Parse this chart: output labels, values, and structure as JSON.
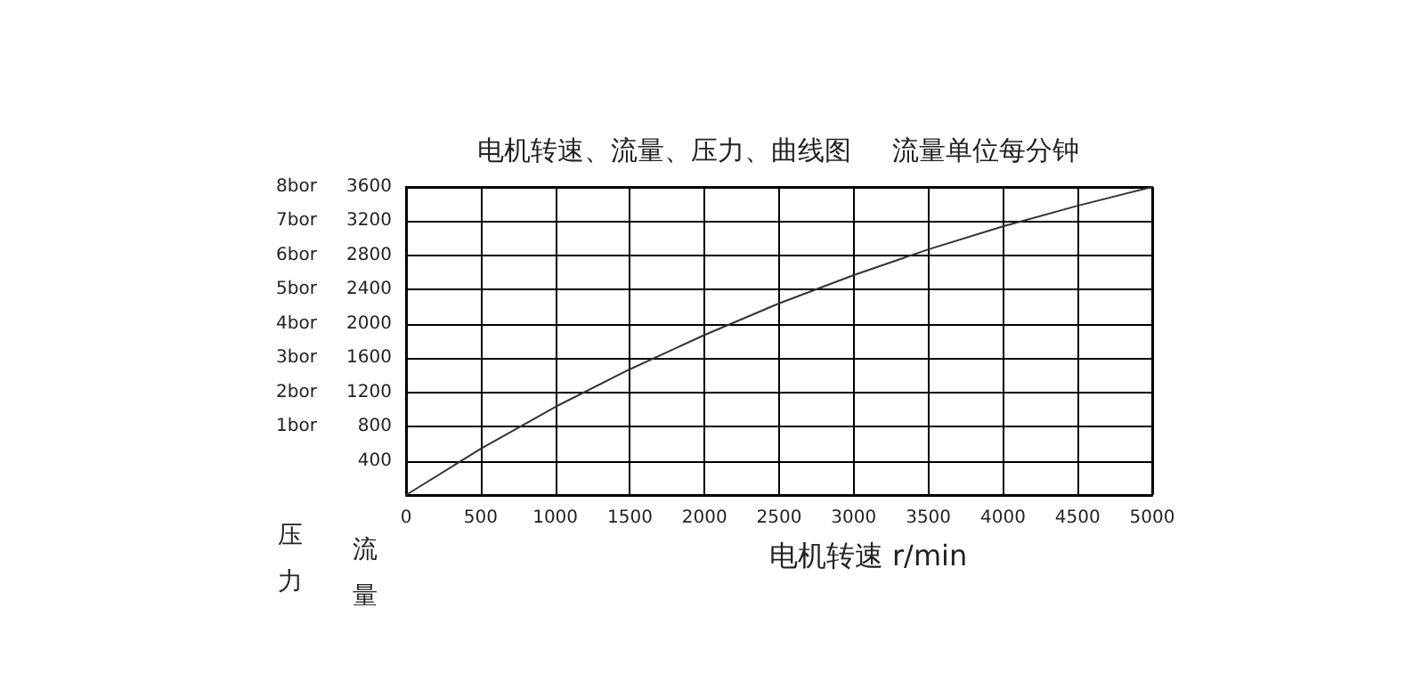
{
  "chart_data": {
    "type": "line",
    "title": "电机转速、流量、压力、曲线图",
    "subtitle": "流量单位每分钟",
    "xlabel": "电机转速 r/min",
    "ylabel": "流量",
    "y2label": "压力",
    "x": [
      0,
      500,
      1000,
      1500,
      2000,
      2500,
      3000,
      3500,
      4000,
      4500,
      5000
    ],
    "series": [
      {
        "color": "#333333",
        "values": [
          0,
          540,
          1030,
          1470,
          1870,
          2240,
          2570,
          2870,
          3140,
          3380,
          3600
        ]
      }
    ],
    "xlim": [
      0,
      5000
    ],
    "xticks": [
      0,
      500,
      1000,
      1500,
      2000,
      2500,
      3000,
      3500,
      4000,
      4500,
      5000
    ],
    "ylim": [
      0,
      3600
    ],
    "yticks": [
      400,
      800,
      1200,
      1600,
      2000,
      2400,
      2800,
      3200,
      3600
    ],
    "y2lim": [
      -1,
      8
    ],
    "y2ticks": [
      {
        "value": 1,
        "label": "1bor"
      },
      {
        "value": 2,
        "label": "2bor"
      },
      {
        "value": 3,
        "label": "3bor"
      },
      {
        "value": 4,
        "label": "4bor"
      },
      {
        "value": 5,
        "label": "5bor"
      },
      {
        "value": 6,
        "label": "6bor"
      },
      {
        "value": 7,
        "label": "7bor"
      },
      {
        "value": 8,
        "label": "8bor"
      }
    ],
    "grid": true,
    "marker": "none",
    "line_style": "solid"
  }
}
